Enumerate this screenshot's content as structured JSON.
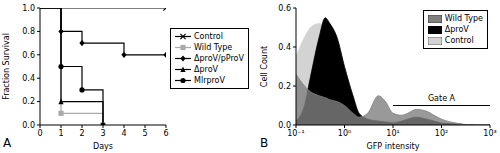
{
  "chart_data": [
    {
      "type": "line",
      "panel": "A",
      "xlabel": "Days",
      "ylabel": "Fraction Survival",
      "x": [
        0,
        1,
        2,
        3,
        4,
        5,
        6
      ],
      "xlim": [
        0,
        6
      ],
      "xticks": [
        0,
        1,
        2,
        3,
        4,
        5,
        6
      ],
      "ylim": [
        0,
        1
      ],
      "yticks": [
        {
          "value": 0,
          "label": "0.0"
        },
        0.2,
        0.4,
        0.6,
        0.8,
        {
          "value": 1,
          "label": "1.0"
        }
      ],
      "line_style": "step",
      "legend": "right",
      "series": [
        {
          "name": "Control",
          "color": "#000000",
          "marker": "x",
          "values": [
            1,
            1,
            1,
            1,
            1,
            1,
            1
          ]
        },
        {
          "name": "Wild Type",
          "color": "#aaaaaa",
          "marker": "square",
          "values": [
            1,
            0.1,
            0.1,
            0,
            null,
            null,
            null
          ]
        },
        {
          "name": "ΔproV/pProV",
          "color": "#000000",
          "marker": "diamond",
          "values": [
            1,
            0.8,
            0.7,
            0.7,
            0.6,
            0.6,
            0.6
          ]
        },
        {
          "name": "ΔproV",
          "color": "#000000",
          "marker": "triangle",
          "values": [
            1,
            0.2,
            0.2,
            0,
            null,
            null,
            null
          ]
        },
        {
          "name": "MlrproV",
          "color": "#000000",
          "marker": "circle",
          "values": [
            1,
            0.5,
            0.3,
            0,
            null,
            null,
            null
          ]
        }
      ]
    },
    {
      "type": "area",
      "panel": "B",
      "xlabel": "GFP intensity",
      "ylabel": "Cell Count",
      "log": "x",
      "x": [
        0.1,
        0.15,
        0.2,
        0.3,
        0.4,
        0.5,
        0.7,
        1,
        1.5,
        2,
        3,
        5,
        7,
        10,
        15,
        20,
        30,
        50,
        70,
        100,
        200,
        500,
        1000
      ],
      "xlim": [
        0.1,
        1000
      ],
      "xticks": [
        {
          "value": 0.1,
          "label": "10⁻¹"
        },
        {
          "value": 1,
          "label": "10⁰"
        },
        {
          "value": 10,
          "label": "10¹"
        },
        {
          "value": 100,
          "label": "10²"
        },
        {
          "value": 1000,
          "label": "10³"
        }
      ],
      "ylim": [
        0,
        0.6
      ],
      "yticks": [
        {
          "value": 0,
          "label": "0.0"
        },
        0.2,
        0.4,
        0.6
      ],
      "legend": "top-right",
      "series": [
        {
          "name": "Wild Type",
          "color": "#808080",
          "values": [
            0.26,
            0.2,
            0.17,
            0.15,
            0.14,
            0.13,
            0.12,
            0.1,
            0.06,
            0.04,
            0.06,
            0.15,
            0.12,
            0.06,
            0.05,
            0.06,
            0.08,
            0.07,
            0.05,
            0.03,
            0.01,
            0,
            0
          ]
        },
        {
          "name": "ΔproV",
          "color": "#000000",
          "values": [
            0.02,
            0.1,
            0.25,
            0.45,
            0.55,
            0.52,
            0.45,
            0.3,
            0.15,
            0.06,
            0.03,
            0.02,
            0.015,
            0.01,
            0.02,
            0.03,
            0.04,
            0.03,
            0.02,
            0.01,
            0.005,
            0,
            0
          ]
        },
        {
          "name": "Control",
          "color": "#d3d3d3",
          "values": [
            0.35,
            0.45,
            0.5,
            0.52,
            0.5,
            0.45,
            0.35,
            0.25,
            0.12,
            0.05,
            0.03,
            0.02,
            0.02,
            0.02,
            0.02,
            0.02,
            0.02,
            0.015,
            0.01,
            0.005,
            0,
            0,
            0
          ]
        }
      ],
      "gate": {
        "label": "Gate A",
        "range": [
          10,
          1000
        ],
        "level": 0.1
      }
    }
  ]
}
